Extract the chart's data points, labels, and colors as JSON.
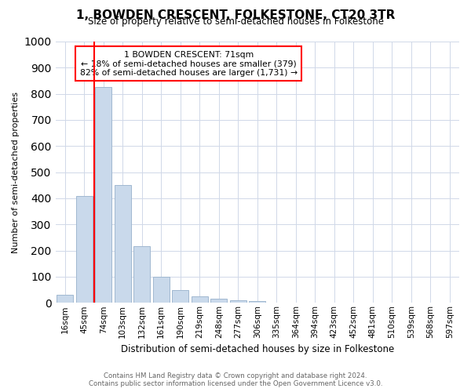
{
  "title": "1, BOWDEN CRESCENT, FOLKESTONE, CT20 3TR",
  "subtitle": "Size of property relative to semi-detached houses in Folkestone",
  "xlabel": "Distribution of semi-detached houses by size in Folkestone",
  "ylabel": "Number of semi-detached properties",
  "bar_values": [
    30,
    410,
    825,
    450,
    218,
    100,
    50,
    25,
    15,
    10,
    8,
    0,
    0,
    0,
    0,
    0,
    0,
    0,
    0,
    0,
    0
  ],
  "bar_labels": [
    "16sqm",
    "45sqm",
    "74sqm",
    "103sqm",
    "132sqm",
    "161sqm",
    "190sqm",
    "219sqm",
    "248sqm",
    "277sqm",
    "306sqm",
    "335sqm",
    "364sqm",
    "394sqm",
    "423sqm",
    "452sqm",
    "481sqm",
    "510sqm",
    "539sqm",
    "568sqm",
    "597sqm"
  ],
  "bar_color": "#c9d9eb",
  "bar_edge_color": "#a0b8d0",
  "grid_color": "#d0d8e8",
  "background_color": "#ffffff",
  "marker_bin_index": 2,
  "marker_color": "red",
  "annotation_title": "1 BOWDEN CRESCENT: 71sqm",
  "annotation_line1": "← 18% of semi-detached houses are smaller (379)",
  "annotation_line2": "82% of semi-detached houses are larger (1,731) →",
  "annotation_box_color": "#ffffff",
  "annotation_box_edge": "red",
  "ylim": [
    0,
    1000
  ],
  "yticks": [
    0,
    100,
    200,
    300,
    400,
    500,
    600,
    700,
    800,
    900,
    1000
  ],
  "footer_line1": "Contains HM Land Registry data © Crown copyright and database right 2024.",
  "footer_line2": "Contains public sector information licensed under the Open Government Licence v3.0."
}
